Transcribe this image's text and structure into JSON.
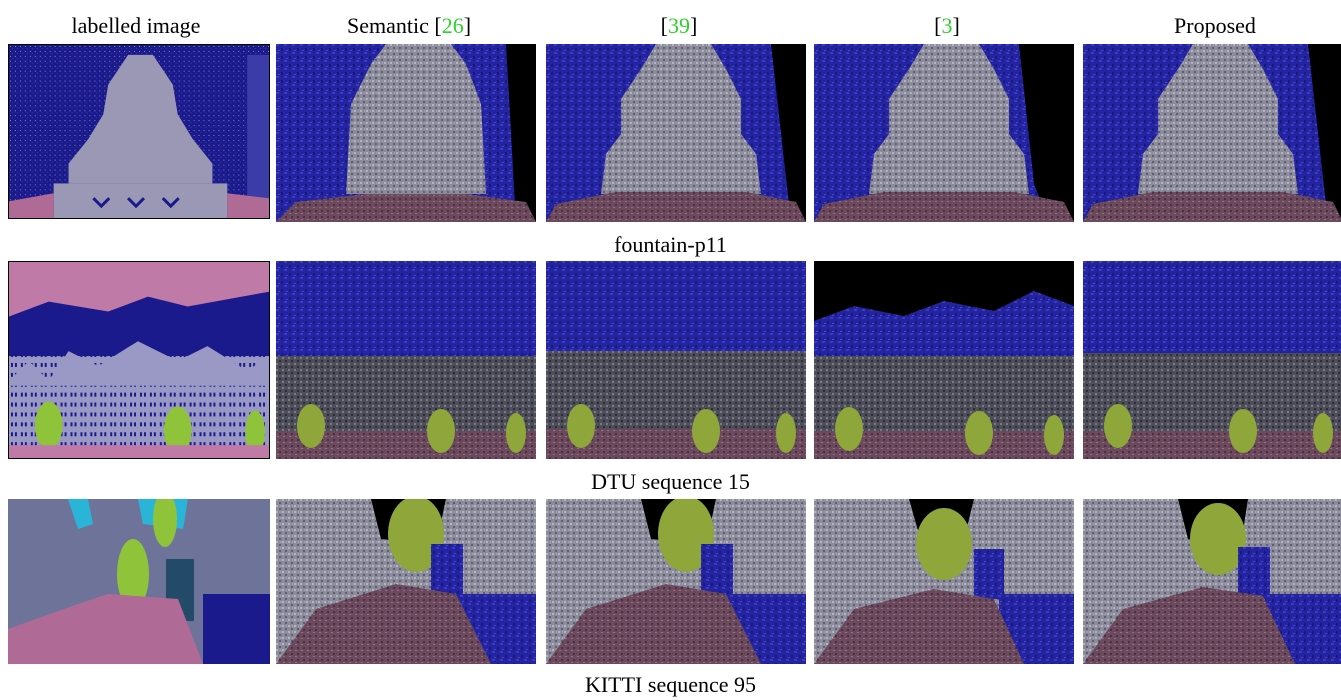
{
  "headers": {
    "labelled": "labelled image",
    "semantic_prefix": "Semantic [",
    "semantic_ref": "26",
    "semantic_suffix": "]",
    "ref39_open": "[",
    "ref39": "39",
    "ref39_close": "]",
    "ref3_open": "[",
    "ref3": "3",
    "ref3_close": "]",
    "proposed": "Proposed"
  },
  "rows": [
    {
      "caption": "fountain-p11"
    },
    {
      "caption": "DTU sequence 15"
    },
    {
      "caption": "KITTI sequence 95"
    }
  ],
  "colors": {
    "label_building": "#1a1a8c",
    "label_structure": "#9a98b4",
    "label_ground": "#b06a96",
    "label_vegetation": "#8fc43a",
    "label_sky": "#2ab4d8",
    "label_kitti_bg": "#6e7499",
    "mesh_blue": "#2c2cb8",
    "mesh_gray": "#8f8f9f",
    "mesh_ground": "#6a4a5c",
    "reference_link": "#2bd12b"
  }
}
